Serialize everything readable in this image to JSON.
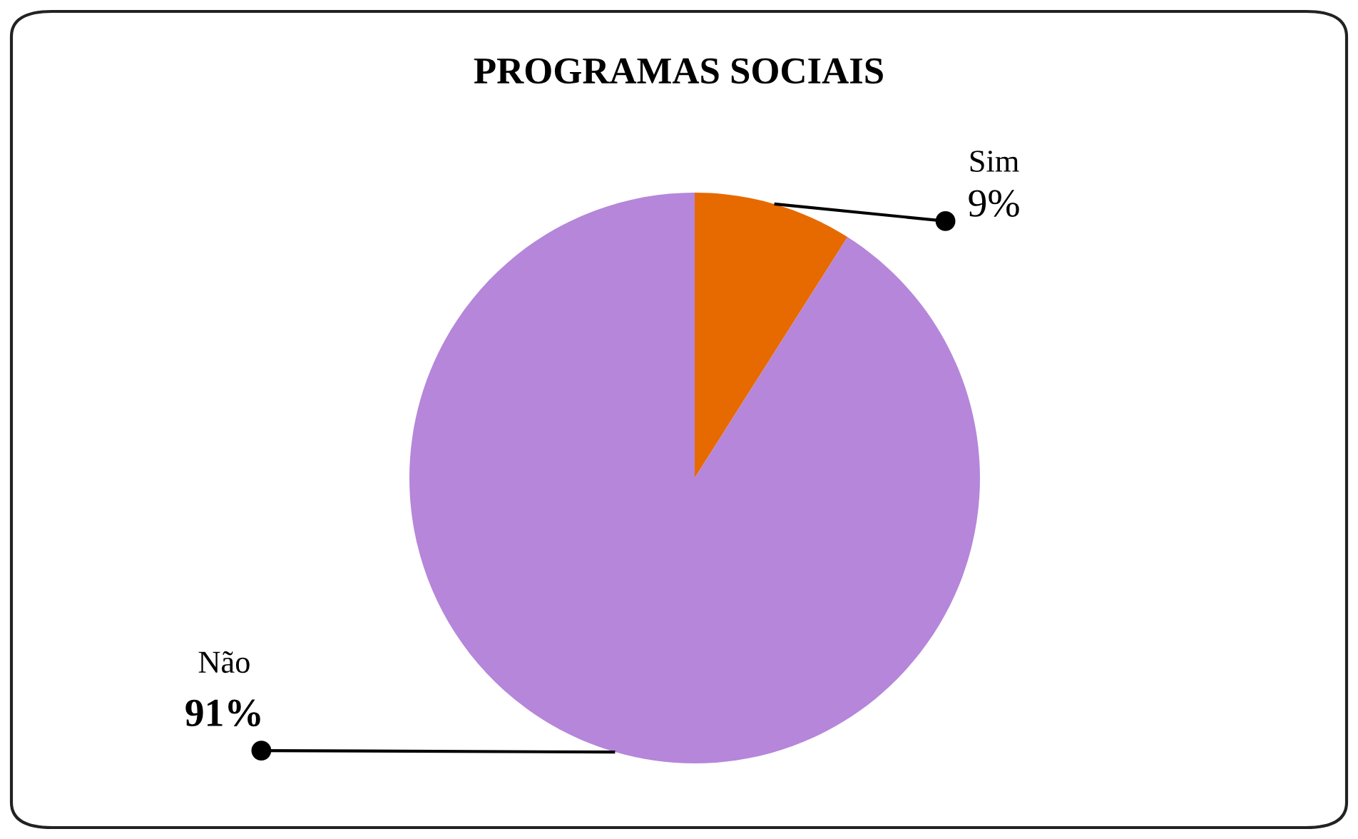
{
  "chart_data": {
    "type": "pie",
    "title": "PROGRAMAS SOCIAIS",
    "categories": [
      "Sim",
      "Não"
    ],
    "values": [
      9,
      91
    ],
    "colors": [
      "#e66a00",
      "#b586da"
    ],
    "value_labels": [
      "9%",
      "91%"
    ]
  }
}
